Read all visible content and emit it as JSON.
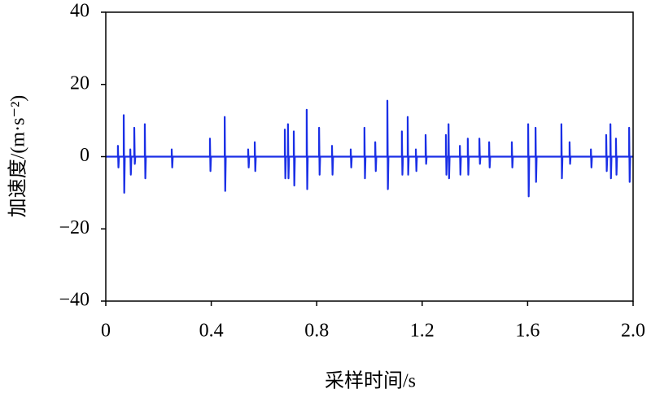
{
  "chart_data": {
    "type": "line",
    "x_label": "采样时间/s",
    "y_label": "加速度/(m·s⁻²)",
    "color": "#1a2fe6",
    "xlim": [
      0,
      2
    ],
    "ylim": [
      -40,
      40
    ],
    "xticks": [
      0,
      0.4,
      0.8,
      1.2,
      1.6,
      {
        "value": 2,
        "label": "2.0"
      }
    ],
    "yticks": [
      40,
      20,
      0,
      {
        "value": -20,
        "label": "−20"
      },
      {
        "value": -40,
        "label": "−40"
      }
    ],
    "x": [
      0,
      0.046,
      0.046,
      0.048,
      0.05,
      0.068,
      0.068,
      0.07,
      0.072,
      0.093,
      0.093,
      0.095,
      0.097,
      0.108,
      0.108,
      0.11,
      0.112,
      0.148,
      0.148,
      0.15,
      0.152,
      0.25,
      0.25,
      0.252,
      0.254,
      0.395,
      0.395,
      0.397,
      0.399,
      0.451,
      0.451,
      0.453,
      0.455,
      0.54,
      0.54,
      0.542,
      0.544,
      0.565,
      0.565,
      0.567,
      0.569,
      0.679,
      0.679,
      0.681,
      0.683,
      0.691,
      0.691,
      0.693,
      0.695,
      0.713,
      0.713,
      0.715,
      0.717,
      0.762,
      0.762,
      0.764,
      0.766,
      0.809,
      0.809,
      0.811,
      0.813,
      0.858,
      0.858,
      0.86,
      0.862,
      0.929,
      0.929,
      0.931,
      0.933,
      0.981,
      0.981,
      0.983,
      0.985,
      1.022,
      1.022,
      1.024,
      1.026,
      1.068,
      1.068,
      1.07,
      1.072,
      1.123,
      1.123,
      1.125,
      1.127,
      1.145,
      1.145,
      1.147,
      1.149,
      1.176,
      1.176,
      1.178,
      1.18,
      1.213,
      1.213,
      1.215,
      1.217,
      1.29,
      1.29,
      1.292,
      1.294,
      1.3,
      1.3,
      1.302,
      1.304,
      1.343,
      1.343,
      1.345,
      1.347,
      1.373,
      1.373,
      1.375,
      1.377,
      1.417,
      1.417,
      1.419,
      1.421,
      1.454,
      1.454,
      1.456,
      1.458,
      1.54,
      1.54,
      1.542,
      1.544,
      1.602,
      1.602,
      1.604,
      1.606,
      1.63,
      1.63,
      1.632,
      1.634,
      1.728,
      1.728,
      1.73,
      1.732,
      1.759,
      1.759,
      1.761,
      1.763,
      1.84,
      1.84,
      1.842,
      1.844,
      1.898,
      1.898,
      1.9,
      1.902,
      1.914,
      1.914,
      1.916,
      1.918,
      1.935,
      1.935,
      1.937,
      1.939,
      1.985,
      1.985,
      1.987,
      1.989,
      2
    ],
    "values": [
      0,
      0,
      3,
      -3,
      0,
      0,
      11.5,
      -10,
      0,
      0,
      2,
      -5,
      0,
      0,
      8,
      -2,
      0,
      0,
      9,
      -6,
      0,
      0,
      2,
      -3,
      0,
      0,
      5,
      -4,
      0,
      0,
      11,
      -9.5,
      0,
      0,
      2,
      -3,
      0,
      0,
      4,
      -4,
      0,
      0,
      7.5,
      -6,
      0,
      0,
      9,
      -6,
      0,
      0,
      7,
      -8,
      0,
      0,
      13,
      -9,
      0,
      0,
      8,
      -5,
      0,
      0,
      3,
      -5,
      0,
      0,
      2,
      -3,
      0,
      0,
      8,
      -6,
      0,
      0,
      4,
      -4,
      0,
      0,
      15.5,
      -9,
      0,
      0,
      7,
      -5,
      0,
      0,
      11,
      -5,
      0,
      0,
      2,
      -4,
      0,
      0,
      6,
      -2,
      0,
      0,
      6,
      -5,
      0,
      0,
      9,
      -6,
      0,
      0,
      3,
      -5,
      0,
      0,
      5,
      -5,
      0,
      0,
      5,
      -2,
      0,
      0,
      4,
      -3,
      0,
      0,
      4,
      -3,
      0,
      0,
      9,
      -11,
      0,
      0,
      8,
      -7,
      0,
      0,
      9,
      -6,
      0,
      0,
      4,
      -2,
      0,
      0,
      2,
      -3,
      0,
      0,
      6,
      -4,
      0,
      0,
      9,
      -6,
      0,
      0,
      5,
      -5,
      0,
      0,
      8,
      -7,
      0,
      0
    ]
  }
}
